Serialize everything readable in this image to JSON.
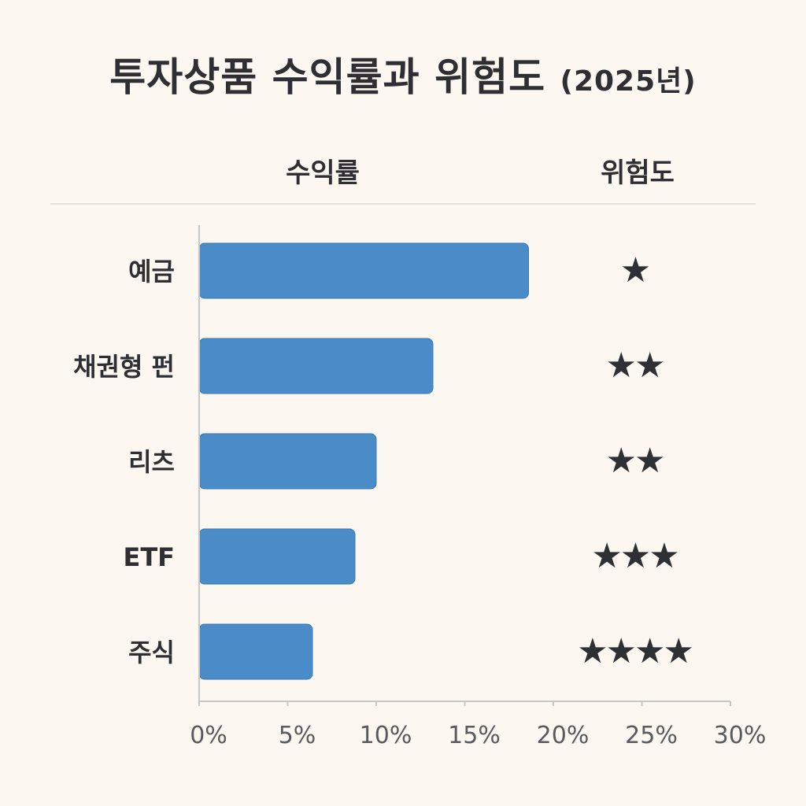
{
  "title": "투자상품 수익률과 위험도",
  "title_year": "(2025년)",
  "headers": {
    "return": "수익률",
    "risk": "위험도"
  },
  "colors": {
    "bar": "#4a8cc7",
    "bar_edge": "#3b78b3",
    "axis": "#c7c7c7",
    "text": "#2f2f33",
    "tick_text": "#5a5a5e",
    "background": "#fcf8f1"
  },
  "chart_data": {
    "type": "bar",
    "orientation": "horizontal",
    "categories": [
      "예금",
      "채권형 펀",
      "리츠",
      "ETF",
      "주식"
    ],
    "values": [
      18.6,
      13.2,
      10.0,
      8.8,
      6.4
    ],
    "xlim": [
      0,
      30
    ],
    "xticks": [
      0,
      5,
      10,
      15,
      20,
      25,
      30
    ],
    "xtick_labels": [
      "0%",
      "5%",
      "10%",
      "15%",
      "20%",
      "25%",
      "30%"
    ],
    "grid": false,
    "risk_stars": [
      1,
      2,
      2,
      3,
      4
    ],
    "risk_symbol": "★"
  }
}
